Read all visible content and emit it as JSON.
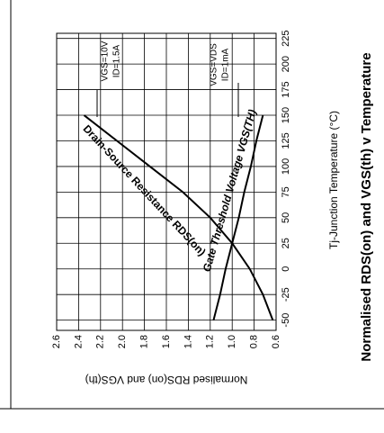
{
  "chart_data": {
    "type": "line",
    "title": "Normalised RDS(on) and VGS(th) v Temperature",
    "x_label": "Tj-Junction Temperature (°C)",
    "y_label": "Normalised RDS(on) and VGS(th)",
    "x": [
      -50,
      -25,
      0,
      25,
      50,
      75,
      100,
      125,
      150
    ],
    "series": [
      {
        "name": "Drain-Source Resistance RDS(on)",
        "color": "#000000",
        "values": [
          0.63,
          0.72,
          0.84,
          1.0,
          1.2,
          1.45,
          1.75,
          2.05,
          2.35
        ]
      },
      {
        "name": "Gate Threshold Voltage VGS(TH)",
        "color": "#000000",
        "values": [
          1.17,
          1.11,
          1.06,
          1.0,
          0.94,
          0.89,
          0.83,
          0.78,
          0.72
        ]
      }
    ],
    "annotations": [
      "VGS=10V",
      "ID=1.5A",
      "VGS=VDS",
      "ID=1mA"
    ],
    "xlim": [
      -60,
      230
    ],
    "xticks": [
      -50,
      -25,
      0,
      25,
      50,
      75,
      100,
      125,
      150,
      175,
      200,
      225
    ],
    "ylim": [
      0.6,
      2.6
    ],
    "yticks": [
      0.6,
      0.8,
      {
        "value": 1.0,
        "label": "1.0"
      },
      1.2,
      1.4,
      1.6,
      1.8,
      {
        "value": 2.0,
        "label": "2.0"
      },
      2.2,
      2.4,
      2.6
    ],
    "grid": true
  }
}
